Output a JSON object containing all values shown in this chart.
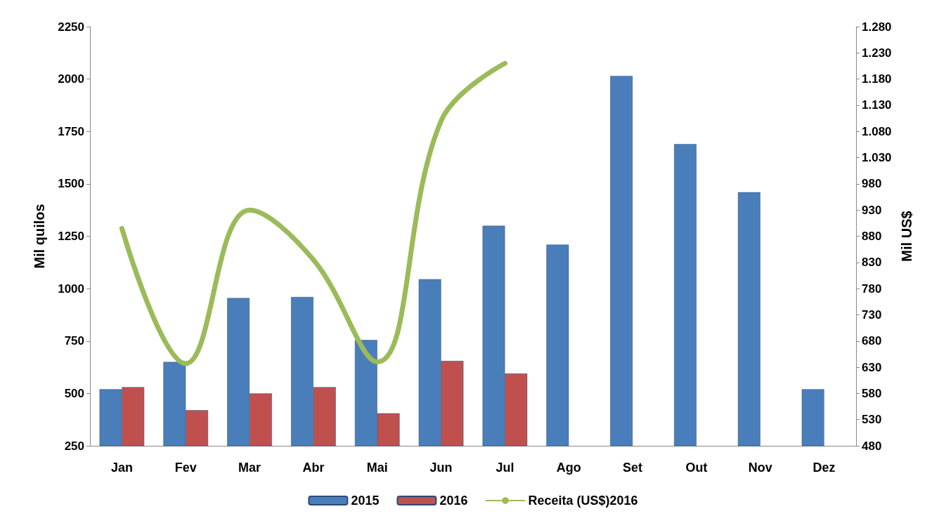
{
  "chart_data": {
    "type": "bar",
    "ylabel": "Mil quilos",
    "y2label": "Mil US$",
    "categories": [
      "Jan",
      "Fev",
      "Mar",
      "Abr",
      "Mai",
      "Jun",
      "Jul",
      "Ago",
      "Set",
      "Out",
      "Nov",
      "Dez"
    ],
    "series": [
      {
        "name": "2015",
        "color": "#4a7ebb",
        "values": [
          520,
          650,
          955,
          960,
          755,
          1045,
          1300,
          1210,
          2015,
          1690,
          1460,
          520
        ]
      },
      {
        "name": "2016",
        "color": "#c0504d",
        "values": [
          530,
          420,
          500,
          530,
          405,
          655,
          595,
          null,
          null,
          null,
          null,
          null
        ]
      },
      {
        "name": "Receita (US$)2016",
        "type": "line",
        "axis": "y2",
        "color": "#9bbb59",
        "values": [
          895,
          637,
          930,
          835,
          640,
          1100,
          1210,
          null,
          null,
          null,
          null,
          null
        ]
      }
    ],
    "ylim": [
      250,
      2250
    ],
    "yticks": [
      250,
      500,
      750,
      1000,
      1250,
      1500,
      1750,
      2000,
      2250
    ],
    "y2lim": [
      480,
      1280
    ],
    "y2ticks": [
      480,
      530,
      580,
      630,
      680,
      730,
      780,
      830,
      880,
      930,
      980,
      {
        "value": 1030,
        "label": "1.030"
      },
      {
        "value": 1080,
        "label": "1.080"
      },
      {
        "value": 1130,
        "label": "1.130"
      },
      {
        "value": 1180,
        "label": "1.180"
      },
      {
        "value": 1230,
        "label": "1.230"
      },
      {
        "value": 1280,
        "label": "1.280"
      }
    ],
    "grid": false,
    "legend": "bottom",
    "marker": "none",
    "line_style": "solid"
  }
}
